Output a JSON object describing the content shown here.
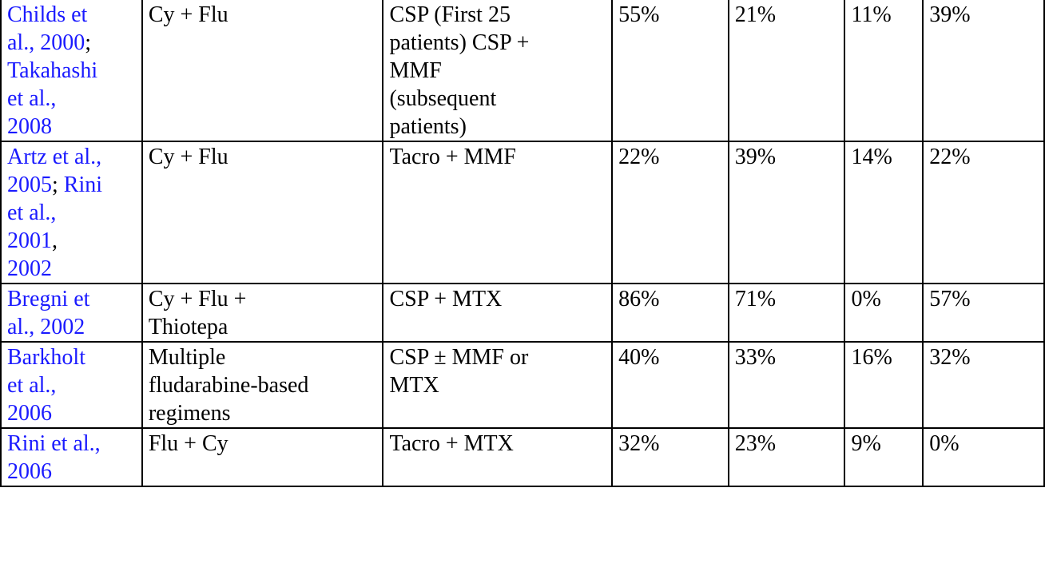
{
  "colors": {
    "link": "#1a1aff",
    "text": "#000000",
    "border": "#000000"
  },
  "rows": [
    {
      "reference_lines": [
        [
          {
            "text": "Childs et",
            "link": true
          }
        ],
        [
          {
            "text": "al., 2000",
            "link": true
          },
          {
            "text": ";",
            "link": false
          }
        ],
        [
          {
            "text": "Takahashi",
            "link": true
          }
        ],
        [
          {
            "text": "et al.,",
            "link": true
          }
        ],
        [
          {
            "text": "2008",
            "link": true
          }
        ]
      ],
      "conditioning": "Cy + Flu",
      "gvhd_prophylaxis": "CSP (First 25 patients) CSP + MMF (subsequent patients)",
      "col4": "55%",
      "col5": "21%",
      "col6": "11%",
      "col7": "39%"
    },
    {
      "reference_lines": [
        [
          {
            "text": "Artz et al.,",
            "link": true
          }
        ],
        [
          {
            "text": "2005",
            "link": true
          },
          {
            "text": "; ",
            "link": false
          },
          {
            "text": "Rini",
            "link": true
          }
        ],
        [
          {
            "text": "et al.,",
            "link": true
          }
        ],
        [
          {
            "text": "2001",
            "link": true
          },
          {
            "text": ",",
            "link": false
          }
        ],
        [
          {
            "text": "2002",
            "link": true
          }
        ]
      ],
      "conditioning": "Cy + Flu",
      "gvhd_prophylaxis": "Tacro + MMF",
      "col4": "22%",
      "col5": "39%",
      "col6": "14%",
      "col7": "22%"
    },
    {
      "reference_lines": [
        [
          {
            "text": "Bregni et",
            "link": true
          }
        ],
        [
          {
            "text": "al., 2002",
            "link": true
          }
        ]
      ],
      "conditioning": "Cy + Flu + Thiotepa",
      "gvhd_prophylaxis": "CSP + MTX",
      "col4": "86%",
      "col5": "71%",
      "col6": "0%",
      "col7": "57%"
    },
    {
      "reference_lines": [
        [
          {
            "text": "Barkholt",
            "link": true
          }
        ],
        [
          {
            "text": "et al.,",
            "link": true
          }
        ],
        [
          {
            "text": "2006",
            "link": true
          }
        ]
      ],
      "conditioning": "Multiple fludarabine-based regimens",
      "gvhd_prophylaxis": "CSP ± MMF or MTX",
      "col4": "40%",
      "col5": "33%",
      "col6": "16%",
      "col7": "32%"
    },
    {
      "reference_lines": [
        [
          {
            "text": "Rini et al.,",
            "link": true
          }
        ],
        [
          {
            "text": "2006",
            "link": true
          }
        ]
      ],
      "conditioning": "Flu + Cy",
      "gvhd_prophylaxis": "Tacro + MTX",
      "col4": "32%",
      "col5": "23%",
      "col6": "9%",
      "col7": "0%"
    }
  ]
}
